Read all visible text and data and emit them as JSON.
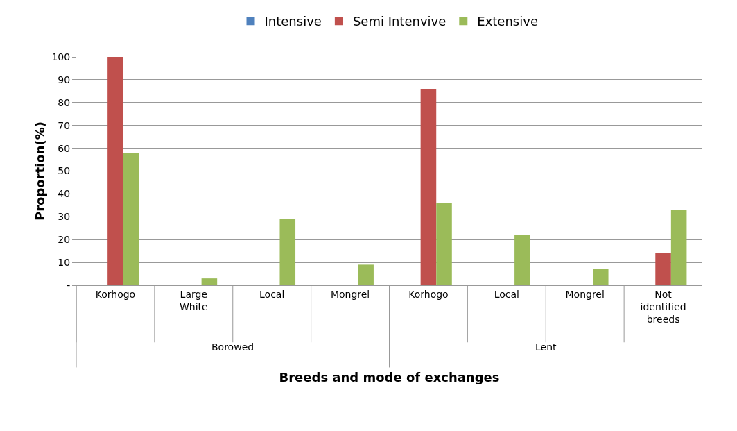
{
  "chart_data": {
    "type": "bar",
    "xlabel": "Breeds and mode of exchanges",
    "ylabel": "Proportion(%)",
    "categories": [
      "Korhogo",
      "Large White",
      "Local",
      "Mongrel",
      "Korhogo",
      "Local",
      "Mongrel",
      "Not identified breeds"
    ],
    "series": [
      {
        "name": "Intensive",
        "color": "#4f81bd",
        "values": [
          0,
          0,
          0,
          0,
          0,
          0,
          0,
          0
        ]
      },
      {
        "name": "Semi Intenvive",
        "color": "#c0504d",
        "values": [
          100,
          0,
          0,
          0,
          86,
          0,
          0,
          14
        ]
      },
      {
        "name": "Extensive",
        "color": "#9bbb59",
        "values": [
          58,
          3,
          29,
          9,
          36,
          22,
          7,
          33
        ]
      }
    ],
    "ylim": [
      0,
      100
    ],
    "yticks": [
      {
        "value": 0,
        "label": "-"
      },
      10,
      20,
      30,
      40,
      50,
      60,
      70,
      80,
      90,
      100
    ],
    "grid": "y",
    "legend": "top",
    "annotations": [
      "Borowed",
      "Lent"
    ]
  }
}
